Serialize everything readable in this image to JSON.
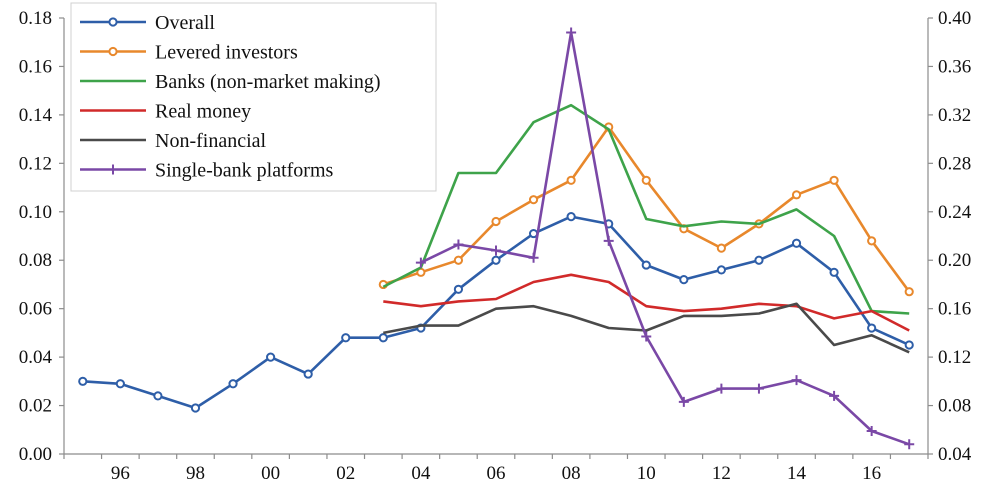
{
  "chart_data": {
    "type": "line",
    "title": "",
    "xlabel": "",
    "ylabel_left": "",
    "ylabel_right": "",
    "x": [
      1995,
      1996,
      1997,
      1998,
      1999,
      2000,
      2001,
      2002,
      2003,
      2004,
      2005,
      2006,
      2007,
      2008,
      2009,
      2010,
      2011,
      2012,
      2013,
      2014,
      2015,
      2016,
      2017
    ],
    "xlim": [
      1994.5,
      2017.5
    ],
    "x_ticks": [
      1996,
      1998,
      2000,
      2002,
      2004,
      2006,
      2008,
      2010,
      2012,
      2014,
      2016
    ],
    "x_tick_labels": [
      "96",
      "98",
      "00",
      "02",
      "04",
      "06",
      "08",
      "10",
      "12",
      "14",
      "16"
    ],
    "ylim_left": [
      0,
      0.18
    ],
    "y_ticks_left": [
      "0.00",
      "0.02",
      "0.04",
      "0.06",
      "0.08",
      "0.10",
      "0.12",
      "0.14",
      "0.16",
      "0.18"
    ],
    "ylim_right": [
      0.04,
      0.4
    ],
    "y_ticks_right": [
      "0.04",
      "0.08",
      "0.12",
      "0.16",
      "0.20",
      "0.24",
      "0.28",
      "0.32",
      "0.36",
      "0.40"
    ],
    "grid": false,
    "legend_position": "top-left",
    "series": [
      {
        "name": "Overall",
        "axis": "left",
        "color": "#2e5ea8",
        "marker": "circle",
        "values": [
          0.03,
          0.029,
          0.024,
          0.019,
          0.029,
          0.04,
          0.033,
          0.048,
          0.048,
          0.052,
          0.068,
          0.08,
          0.091,
          0.098,
          0.095,
          0.078,
          0.072,
          0.076,
          0.08,
          0.087,
          0.075,
          0.052,
          0.045
        ]
      },
      {
        "name": "Levered investors",
        "axis": "left",
        "color": "#e8882c",
        "marker": "circle",
        "values": [
          null,
          null,
          null,
          null,
          null,
          null,
          null,
          null,
          0.07,
          0.075,
          0.08,
          0.096,
          0.105,
          0.113,
          0.135,
          0.113,
          0.093,
          0.085,
          0.095,
          0.107,
          0.113,
          0.088,
          0.067
        ]
      },
      {
        "name": "Banks (non-market making)",
        "axis": "left",
        "color": "#3ea34a",
        "marker": "none",
        "values": [
          null,
          null,
          null,
          null,
          null,
          null,
          null,
          null,
          0.069,
          0.077,
          0.116,
          0.116,
          0.137,
          0.144,
          0.134,
          0.097,
          0.094,
          0.096,
          0.095,
          0.101,
          0.09,
          0.059,
          0.058
        ]
      },
      {
        "name": "Real money",
        "axis": "left",
        "color": "#d12a2a",
        "marker": "none",
        "values": [
          null,
          null,
          null,
          null,
          null,
          null,
          null,
          null,
          0.063,
          0.061,
          0.063,
          0.064,
          0.071,
          0.074,
          0.071,
          0.061,
          0.059,
          0.06,
          0.062,
          0.061,
          0.056,
          0.059,
          0.051
        ]
      },
      {
        "name": "Non-financial",
        "axis": "left",
        "color": "#4a4a4a",
        "marker": "none",
        "values": [
          null,
          null,
          null,
          null,
          null,
          null,
          null,
          null,
          0.05,
          0.053,
          0.053,
          0.06,
          0.061,
          0.057,
          0.052,
          0.051,
          0.057,
          0.057,
          0.058,
          0.062,
          0.045,
          0.049,
          0.042
        ]
      },
      {
        "name": "Single-bank platforms",
        "axis": "right",
        "color": "#7a48a6",
        "marker": "plus",
        "values": [
          null,
          null,
          null,
          null,
          null,
          null,
          null,
          null,
          null,
          0.198,
          0.213,
          0.208,
          0.202,
          0.388,
          0.216,
          0.137,
          0.083,
          0.094,
          0.094,
          0.101,
          0.088,
          0.059,
          0.048
        ]
      }
    ]
  }
}
